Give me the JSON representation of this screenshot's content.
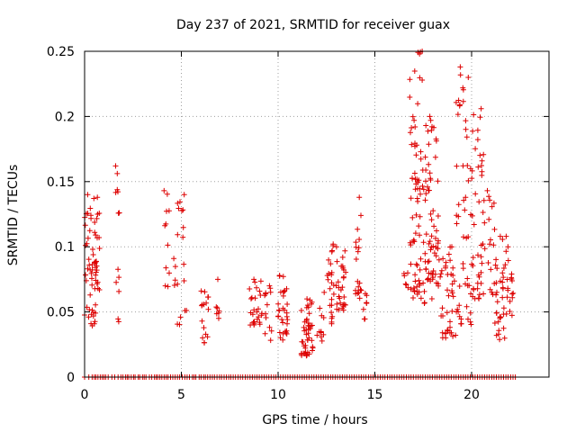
{
  "chart_data": {
    "type": "scatter",
    "title": "Day 237 of 2021, SRMTID for receiver guax",
    "xlabel": "GPS time / hours",
    "ylabel": "SRMTID / TECUs",
    "xlim": [
      0,
      24
    ],
    "ylim": [
      0,
      0.25
    ],
    "x_ticks": [
      0,
      5,
      10,
      15,
      20
    ],
    "x_tick_labels": [
      "0",
      "5",
      "10",
      "15",
      "20"
    ],
    "y_ticks": [
      0,
      0.05,
      0.1,
      0.15,
      0.2,
      0.25
    ],
    "y_tick_labels": [
      "0",
      "0.05",
      "0.1",
      "0.15",
      "0.2",
      "0.25"
    ],
    "grid": true,
    "marker": "plus",
    "color": "#dd0000",
    "series": [
      {
        "name": "SRMTID",
        "clusters": [
          {
            "x_start": 0.0,
            "x_end": 0.6,
            "y_min": 0.038,
            "y_max": 0.14,
            "n": 45
          },
          {
            "x_start": 0.5,
            "x_end": 0.8,
            "y_min": 0.065,
            "y_max": 0.138,
            "n": 20
          },
          {
            "x_start": 1.6,
            "x_end": 1.8,
            "y_min": 0.036,
            "y_max": 0.162,
            "n": 12
          },
          {
            "x_start": 4.1,
            "x_end": 4.4,
            "y_min": 0.067,
            "y_max": 0.143,
            "n": 10
          },
          {
            "x_start": 4.6,
            "x_end": 5.3,
            "y_min": 0.04,
            "y_max": 0.14,
            "n": 20
          },
          {
            "x_start": 6.0,
            "x_end": 6.4,
            "y_min": 0.025,
            "y_max": 0.066,
            "n": 15
          },
          {
            "x_start": 6.8,
            "x_end": 7.0,
            "y_min": 0.045,
            "y_max": 0.075,
            "n": 6
          },
          {
            "x_start": 8.5,
            "x_end": 9.2,
            "y_min": 0.04,
            "y_max": 0.075,
            "n": 25
          },
          {
            "x_start": 9.3,
            "x_end": 9.7,
            "y_min": 0.026,
            "y_max": 0.07,
            "n": 12
          },
          {
            "x_start": 10.0,
            "x_end": 10.5,
            "y_min": 0.028,
            "y_max": 0.078,
            "n": 30
          },
          {
            "x_start": 11.2,
            "x_end": 11.8,
            "y_min": 0.016,
            "y_max": 0.06,
            "n": 45
          },
          {
            "x_start": 12.0,
            "x_end": 12.4,
            "y_min": 0.025,
            "y_max": 0.065,
            "n": 10
          },
          {
            "x_start": 12.5,
            "x_end": 12.9,
            "y_min": 0.04,
            "y_max": 0.102,
            "n": 22
          },
          {
            "x_start": 13.0,
            "x_end": 13.5,
            "y_min": 0.05,
            "y_max": 0.1,
            "n": 28
          },
          {
            "x_start": 14.0,
            "x_end": 14.3,
            "y_min": 0.06,
            "y_max": 0.138,
            "n": 18
          },
          {
            "x_start": 14.4,
            "x_end": 14.6,
            "y_min": 0.044,
            "y_max": 0.064,
            "n": 6
          },
          {
            "x_start": 16.5,
            "x_end": 16.8,
            "y_min": 0.065,
            "y_max": 0.08,
            "n": 5
          },
          {
            "x_start": 16.8,
            "x_end": 17.5,
            "y_min": 0.06,
            "y_max": 0.25,
            "n": 70
          },
          {
            "x_start": 17.5,
            "x_end": 18.3,
            "y_min": 0.055,
            "y_max": 0.2,
            "n": 70
          },
          {
            "x_start": 18.3,
            "x_end": 19.2,
            "y_min": 0.03,
            "y_max": 0.1,
            "n": 40
          },
          {
            "x_start": 19.2,
            "x_end": 20.0,
            "y_min": 0.04,
            "y_max": 0.238,
            "n": 50
          },
          {
            "x_start": 20.0,
            "x_end": 20.7,
            "y_min": 0.06,
            "y_max": 0.206,
            "n": 45
          },
          {
            "x_start": 20.8,
            "x_end": 21.2,
            "y_min": 0.06,
            "y_max": 0.143,
            "n": 15
          },
          {
            "x_start": 21.2,
            "x_end": 21.8,
            "y_min": 0.028,
            "y_max": 0.108,
            "n": 35
          },
          {
            "x_start": 21.8,
            "x_end": 22.2,
            "y_min": 0.045,
            "y_max": 0.1,
            "n": 15
          }
        ],
        "zero_points": [
          0.0,
          0.22,
          0.39,
          0.5,
          0.58,
          0.69,
          0.81,
          0.91,
          1.0,
          1.09,
          1.22,
          1.41,
          1.56,
          1.73,
          1.88,
          1.98,
          2.11,
          2.2,
          2.28,
          2.41,
          2.53,
          2.61,
          2.77,
          2.85,
          2.99,
          3.08,
          3.17,
          3.35,
          3.47,
          3.61,
          3.7,
          3.78,
          3.89,
          3.99,
          4.11,
          4.22,
          4.31,
          4.44,
          4.56,
          4.68,
          4.8,
          4.91,
          5.05,
          5.18,
          5.3,
          5.42,
          5.57,
          5.66,
          5.75,
          5.92,
          6.02,
          6.15,
          6.24,
          6.36,
          6.48,
          6.6,
          6.71,
          6.84,
          6.97,
          7.08,
          7.21,
          7.33,
          7.45,
          7.56,
          7.68,
          7.8,
          7.93,
          8.05,
          8.17,
          8.3,
          8.42,
          8.55,
          8.67,
          8.79,
          8.91,
          9.03,
          9.16,
          9.28,
          9.4,
          9.52,
          9.64,
          9.77,
          9.89,
          10.01,
          10.13,
          10.26,
          10.38,
          10.5,
          10.62,
          10.75,
          10.87,
          10.99,
          11.11,
          11.24,
          11.36,
          11.48,
          11.6,
          11.73,
          11.85,
          11.97,
          12.09,
          12.22,
          12.34,
          12.46,
          12.58,
          12.71,
          12.83,
          12.95,
          13.07,
          13.2,
          13.32,
          13.44,
          13.56,
          13.69,
          13.81,
          13.93,
          14.05,
          14.18,
          14.3,
          14.42,
          14.54,
          14.67,
          14.79,
          14.91,
          15.03,
          15.16,
          15.28,
          15.4,
          15.52,
          15.65,
          15.77,
          15.89,
          16.01,
          16.14,
          16.26,
          16.38,
          16.5,
          16.63,
          16.75,
          16.87,
          16.99,
          17.12,
          17.24,
          17.36,
          17.48,
          17.61,
          17.73,
          17.85,
          17.97,
          18.1,
          18.22,
          18.34,
          18.46,
          18.59,
          18.71,
          18.83,
          18.95,
          19.08,
          19.2,
          19.32,
          19.44,
          19.57,
          19.69,
          19.81,
          19.93,
          20.06,
          20.18,
          20.3,
          20.42,
          20.55,
          20.67,
          20.79,
          20.91,
          21.04,
          21.16,
          21.28,
          21.4,
          21.53,
          21.65,
          21.77,
          21.89,
          22.02,
          22.14,
          22.26
        ]
      }
    ]
  }
}
